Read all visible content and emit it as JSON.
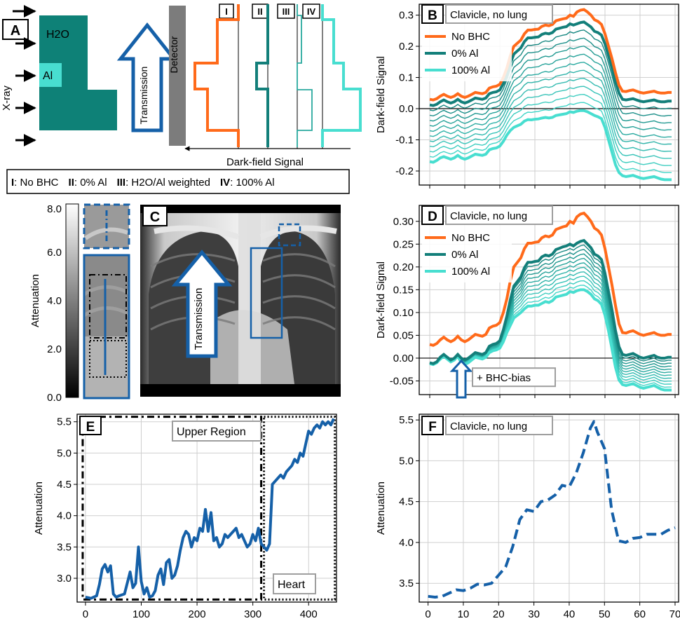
{
  "colors": {
    "orange": "#ff6a1a",
    "teal_dark": "#137f7a",
    "teal_light": "#48ded0",
    "blue": "#1560a8",
    "water": "#0e8177",
    "al": "#48ded0",
    "detector": "#7c7c7c",
    "grid": "#cfcfcf"
  },
  "panel_letters": [
    "A",
    "B",
    "C",
    "D",
    "E",
    "F"
  ],
  "panel_a": {
    "xray_label": "X-ray",
    "h2o_label": "H2O",
    "al_label": "Al",
    "transmission_label": "Transmission",
    "detector_label": "Detector",
    "roman": [
      "I",
      "II",
      "III",
      "IV"
    ],
    "darkfield_label": "Dark-field Signal"
  },
  "legend_box": {
    "items": [
      {
        "num": "I",
        "text": ": No BHC"
      },
      {
        "num": "II",
        "text": ": 0% Al"
      },
      {
        "num": "III",
        "text": ": H2O/Al weighted"
      },
      {
        "num": "IV",
        "text": ": 100% Al"
      }
    ]
  },
  "colorbar": {
    "label": "Attenuation",
    "ticks": [
      "0.0",
      "2.0",
      "4.0",
      "6.0",
      "8.0"
    ]
  },
  "panel_c": {
    "transmission_label": "Transmission"
  },
  "chart_data": [
    {
      "panel": "B",
      "type": "line",
      "annotation": "Clavicle, no lung",
      "ylabel": "Dark-field Signal",
      "xlim": [
        -3,
        71
      ],
      "ylim": [
        -0.245,
        0.335
      ],
      "yticks": [
        "-0.2",
        "-0.1",
        "0.0",
        "0.1",
        "0.2",
        "0.3"
      ],
      "x_tick_labels_visible": false,
      "zero_line": true,
      "legend": [
        "No BHC",
        "0% Al",
        "100% Al"
      ],
      "legend_placement": "upper-left",
      "x": [
        0,
        1,
        2,
        3,
        4,
        5,
        6,
        7,
        8,
        9,
        10,
        11,
        12,
        13,
        14,
        15,
        16,
        17,
        18,
        19,
        20,
        21,
        22,
        23,
        24,
        25,
        26,
        27,
        28,
        29,
        30,
        31,
        32,
        33,
        34,
        35,
        36,
        37,
        38,
        39,
        40,
        41,
        42,
        43,
        44,
        45,
        46,
        47,
        48,
        49,
        50,
        51,
        52,
        53,
        54,
        55,
        56,
        57,
        58,
        59,
        60,
        61,
        62,
        63,
        64,
        65,
        66,
        67,
        68,
        69
      ],
      "series": [
        {
          "name": "No BHC",
          "values": [
            0.03,
            0.028,
            0.032,
            0.04,
            0.046,
            0.04,
            0.036,
            0.04,
            0.048,
            0.04,
            0.036,
            0.04,
            0.046,
            0.052,
            0.05,
            0.048,
            0.052,
            0.066,
            0.07,
            0.072,
            0.078,
            0.1,
            0.13,
            0.17,
            0.2,
            0.21,
            0.22,
            0.24,
            0.252,
            0.252,
            0.254,
            0.255,
            0.264,
            0.268,
            0.266,
            0.27,
            0.282,
            0.285,
            0.288,
            0.29,
            0.3,
            0.296,
            0.31,
            0.316,
            0.318,
            0.31,
            0.3,
            0.285,
            0.28,
            0.27,
            0.24,
            0.2,
            0.16,
            0.115,
            0.075,
            0.056,
            0.055,
            0.058,
            0.06,
            0.056,
            0.052,
            0.05,
            0.052,
            0.054,
            0.056,
            0.052,
            0.05,
            0.05,
            0.052,
            0.052
          ]
        },
        {
          "name": "0% Al",
          "values": [
            0.012,
            0.01,
            0.014,
            0.022,
            0.028,
            0.022,
            0.018,
            0.022,
            0.03,
            0.022,
            0.018,
            0.022,
            0.028,
            0.034,
            0.032,
            0.03,
            0.034,
            0.048,
            0.052,
            0.054,
            0.06,
            0.08,
            0.11,
            0.145,
            0.175,
            0.185,
            0.195,
            0.215,
            0.227,
            0.227,
            0.229,
            0.23,
            0.238,
            0.242,
            0.24,
            0.244,
            0.255,
            0.258,
            0.261,
            0.263,
            0.272,
            0.268,
            0.272,
            0.276,
            0.278,
            0.27,
            0.262,
            0.248,
            0.244,
            0.236,
            0.208,
            0.17,
            0.13,
            0.085,
            0.05,
            0.03,
            0.028,
            0.03,
            0.032,
            0.028,
            0.024,
            0.022,
            0.024,
            0.026,
            0.028,
            0.024,
            0.022,
            0.022,
            0.024,
            0.024
          ]
        },
        {
          "name": "100% Al",
          "values": [
            -0.17,
            -0.172,
            -0.166,
            -0.158,
            -0.154,
            -0.158,
            -0.162,
            -0.158,
            -0.15,
            -0.158,
            -0.162,
            -0.158,
            -0.152,
            -0.146,
            -0.148,
            -0.15,
            -0.146,
            -0.132,
            -0.128,
            -0.126,
            -0.12,
            -0.105,
            -0.085,
            -0.07,
            -0.06,
            -0.055,
            -0.05,
            -0.04,
            -0.035,
            -0.036,
            -0.034,
            -0.033,
            -0.03,
            -0.028,
            -0.03,
            -0.028,
            -0.022,
            -0.02,
            -0.018,
            -0.016,
            -0.01,
            -0.012,
            -0.008,
            -0.006,
            -0.006,
            -0.01,
            -0.016,
            -0.022,
            -0.026,
            -0.032,
            -0.06,
            -0.1,
            -0.14,
            -0.18,
            -0.205,
            -0.215,
            -0.218,
            -0.216,
            -0.214,
            -0.218,
            -0.222,
            -0.224,
            -0.222,
            -0.22,
            -0.218,
            -0.222,
            -0.226,
            -0.228,
            -0.228,
            -0.228
          ]
        }
      ],
      "intermediate_series_count": 10
    },
    {
      "panel": "D",
      "type": "line",
      "annotation": "Clavicle, no lung",
      "inner_annotation": "+ BHC-bias",
      "ylabel": "Dark-field Signal",
      "xlim": [
        -3,
        71
      ],
      "ylim": [
        -0.08,
        0.335
      ],
      "yticks": [
        "-0.05",
        "0.00",
        "0.05",
        "0.10",
        "0.15",
        "0.20",
        "0.25",
        "0.30"
      ],
      "x_tick_labels_visible": false,
      "zero_line": true,
      "legend": [
        "No BHC",
        "0% Al",
        "100% Al"
      ],
      "legend_placement": "upper-left",
      "x": [
        0,
        1,
        2,
        3,
        4,
        5,
        6,
        7,
        8,
        9,
        10,
        11,
        12,
        13,
        14,
        15,
        16,
        17,
        18,
        19,
        20,
        21,
        22,
        23,
        24,
        25,
        26,
        27,
        28,
        29,
        30,
        31,
        32,
        33,
        34,
        35,
        36,
        37,
        38,
        39,
        40,
        41,
        42,
        43,
        44,
        45,
        46,
        47,
        48,
        49,
        50,
        51,
        52,
        53,
        54,
        55,
        56,
        57,
        58,
        59,
        60,
        61,
        62,
        63,
        64,
        65,
        66,
        67,
        68,
        69
      ],
      "series": [
        {
          "name": "No BHC",
          "values": [
            0.03,
            0.028,
            0.032,
            0.04,
            0.046,
            0.04,
            0.036,
            0.04,
            0.048,
            0.04,
            0.036,
            0.04,
            0.046,
            0.052,
            0.05,
            0.048,
            0.052,
            0.066,
            0.07,
            0.072,
            0.078,
            0.1,
            0.13,
            0.17,
            0.2,
            0.21,
            0.22,
            0.24,
            0.252,
            0.252,
            0.254,
            0.255,
            0.264,
            0.268,
            0.266,
            0.27,
            0.282,
            0.285,
            0.288,
            0.29,
            0.3,
            0.296,
            0.31,
            0.316,
            0.318,
            0.31,
            0.3,
            0.285,
            0.28,
            0.27,
            0.24,
            0.2,
            0.16,
            0.115,
            0.075,
            0.056,
            0.055,
            0.058,
            0.06,
            0.056,
            0.052,
            0.05,
            0.052,
            0.054,
            0.056,
            0.052,
            0.05,
            0.05,
            0.052,
            0.052
          ]
        },
        {
          "name": "0% Al",
          "values": [
            -0.01,
            -0.012,
            -0.008,
            0.002,
            0.008,
            0.002,
            -0.004,
            0.0,
            0.008,
            0.0,
            -0.004,
            0.0,
            0.006,
            0.012,
            0.01,
            0.008,
            0.012,
            0.026,
            0.03,
            0.032,
            0.038,
            0.062,
            0.092,
            0.128,
            0.158,
            0.168,
            0.178,
            0.198,
            0.21,
            0.21,
            0.212,
            0.213,
            0.222,
            0.226,
            0.224,
            0.228,
            0.238,
            0.241,
            0.244,
            0.246,
            0.25,
            0.246,
            0.252,
            0.256,
            0.258,
            0.25,
            0.242,
            0.228,
            0.224,
            0.216,
            0.186,
            0.146,
            0.106,
            0.06,
            0.025,
            0.008,
            0.006,
            0.008,
            0.01,
            0.006,
            0.002,
            0.0,
            0.002,
            0.004,
            0.006,
            0.002,
            0.0,
            0.0,
            0.002,
            0.002
          ]
        },
        {
          "name": "100% Al",
          "values": [
            -0.012,
            -0.014,
            -0.01,
            -0.002,
            0.004,
            -0.002,
            -0.008,
            -0.004,
            0.004,
            -0.01,
            -0.014,
            -0.01,
            -0.004,
            0.002,
            0.0,
            -0.002,
            0.002,
            0.012,
            0.016,
            0.018,
            0.022,
            0.036,
            0.056,
            0.072,
            0.088,
            0.094,
            0.1,
            0.108,
            0.114,
            0.114,
            0.116,
            0.116,
            0.12,
            0.124,
            0.122,
            0.126,
            0.134,
            0.136,
            0.138,
            0.14,
            0.146,
            0.144,
            0.148,
            0.15,
            0.15,
            0.146,
            0.14,
            0.13,
            0.126,
            0.118,
            0.094,
            0.06,
            0.02,
            -0.02,
            -0.048,
            -0.058,
            -0.06,
            -0.058,
            -0.056,
            -0.06,
            -0.064,
            -0.066,
            -0.064,
            -0.062,
            -0.06,
            -0.064,
            -0.068,
            -0.07,
            -0.07,
            -0.07
          ]
        }
      ],
      "intermediate_series_count": 10
    },
    {
      "panel": "E",
      "type": "line",
      "ylabel": "Attenuation",
      "xlim": [
        -15,
        450
      ],
      "ylim": [
        2.62,
        5.62
      ],
      "xticks": [
        0,
        100,
        200,
        300,
        400
      ],
      "yticks": [
        "3.0",
        "3.5",
        "4.0",
        "4.5",
        "5.0",
        "5.5"
      ],
      "region_labels": [
        "Upper Region",
        "Heart"
      ],
      "series": [
        {
          "name": "Attenuation",
          "line_style": "solid",
          "x": [
            0,
            10,
            20,
            25,
            30,
            35,
            40,
            45,
            50,
            55,
            60,
            70,
            80,
            85,
            90,
            95,
            100,
            105,
            110,
            115,
            120,
            125,
            130,
            135,
            140,
            145,
            150,
            155,
            160,
            165,
            170,
            175,
            180,
            185,
            190,
            195,
            200,
            205,
            210,
            215,
            220,
            225,
            230,
            235,
            240,
            245,
            250,
            255,
            260,
            265,
            270,
            275,
            280,
            285,
            290,
            295,
            300,
            305,
            310,
            315,
            320,
            325,
            330,
            335,
            340,
            345,
            350,
            355,
            360,
            365,
            370,
            375,
            380,
            385,
            390,
            395,
            400,
            405,
            410,
            415,
            420,
            425,
            430,
            435,
            440,
            445
          ],
          "y": [
            2.7,
            2.68,
            2.72,
            2.9,
            3.15,
            3.22,
            3.1,
            3.2,
            2.75,
            2.7,
            2.72,
            2.75,
            3.1,
            2.85,
            2.92,
            3.5,
            2.95,
            2.75,
            2.85,
            2.7,
            2.72,
            2.8,
            3.05,
            3.15,
            2.9,
            3.25,
            3.3,
            3.0,
            3.05,
            3.2,
            3.45,
            3.65,
            3.75,
            3.7,
            3.5,
            3.65,
            3.6,
            3.8,
            3.75,
            4.1,
            3.75,
            4.05,
            3.6,
            3.65,
            3.5,
            3.55,
            3.7,
            3.65,
            3.7,
            3.75,
            3.8,
            3.65,
            3.7,
            3.6,
            3.5,
            3.55,
            3.7,
            3.6,
            3.8,
            3.55,
            3.5,
            3.45,
            3.55,
            4.5,
            4.55,
            4.6,
            4.65,
            4.6,
            4.7,
            4.75,
            4.8,
            4.9,
            4.85,
            5.0,
            4.95,
            5.15,
            5.35,
            5.3,
            5.4,
            5.45,
            5.4,
            5.5,
            5.45,
            5.5,
            5.45,
            5.55
          ]
        }
      ]
    },
    {
      "panel": "F",
      "type": "line",
      "annotation": "Clavicle, no lung",
      "ylabel": "Attenuation",
      "xlim": [
        -2.5,
        71
      ],
      "ylim": [
        3.27,
        5.57
      ],
      "xticks": [
        0,
        10,
        20,
        30,
        40,
        50,
        60,
        70
      ],
      "yticks": [
        "3.5",
        "4.0",
        "4.5",
        "5.0",
        "5.5"
      ],
      "series": [
        {
          "name": "Attenuation",
          "line_style": "dashed",
          "x": [
            0,
            2,
            4,
            6,
            8,
            10,
            12,
            14,
            16,
            18,
            20,
            22,
            24,
            26,
            28,
            30,
            32,
            34,
            36,
            38,
            40,
            42,
            44,
            46,
            47,
            48,
            50,
            52,
            54,
            56,
            58,
            60,
            62,
            64,
            66,
            68,
            70
          ],
          "y": [
            3.34,
            3.33,
            3.34,
            3.38,
            3.42,
            3.41,
            3.44,
            3.49,
            3.48,
            3.5,
            3.6,
            3.7,
            3.95,
            4.28,
            4.4,
            4.38,
            4.5,
            4.52,
            4.58,
            4.7,
            4.68,
            4.85,
            5.1,
            5.4,
            5.48,
            5.35,
            5.15,
            4.4,
            4.02,
            4.0,
            4.05,
            4.06,
            4.1,
            4.1,
            4.1,
            4.15,
            4.18
          ]
        }
      ]
    }
  ]
}
